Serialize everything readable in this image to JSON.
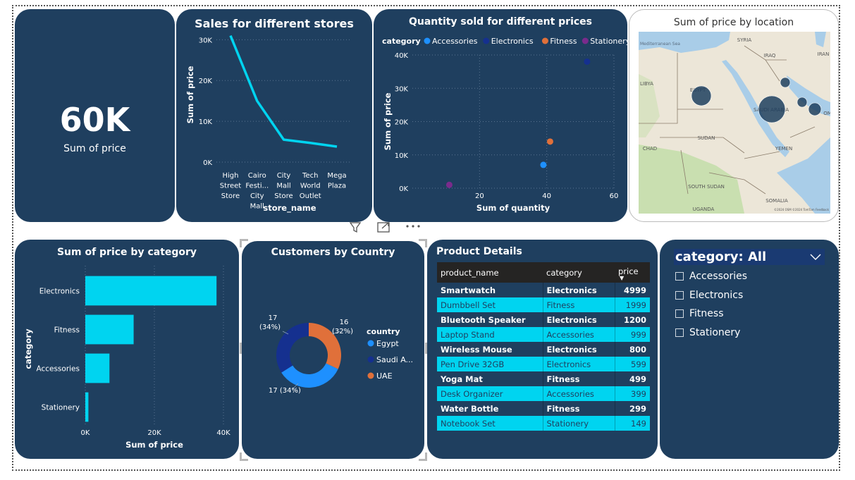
{
  "colors": {
    "card": "#1f3f5f",
    "accent": "#00d4f0",
    "accessories": "#1e90ff",
    "electronics": "#15308f",
    "fitness": "#e0703a",
    "stationery": "#7a2b8c"
  },
  "kpi": {
    "value": "60K",
    "label": "Sum of price"
  },
  "visual_header_icons": [
    "filter-icon",
    "focus-mode-icon",
    "more-options-icon"
  ],
  "chart_data": [
    {
      "type": "line",
      "title": "Sales for different stores",
      "xlabel": "store_name",
      "ylabel": "Sum of price",
      "categories": [
        "High Street Store",
        "Cairo Festival City Mall",
        "City Mall Store",
        "Tech World Outlet",
        "Mega Plaza"
      ],
      "category_tick_lines": [
        [
          "High",
          "Street",
          "Store"
        ],
        [
          "Cairo",
          "Festi...",
          "City",
          "Mall"
        ],
        [
          "City",
          "Mall",
          "Store"
        ],
        [
          "Tech",
          "World",
          "Outlet"
        ],
        [
          "Mega",
          "Plaza"
        ]
      ],
      "values": [
        31000,
        15000,
        5500,
        4700,
        3800
      ],
      "ylim": [
        0,
        33000
      ],
      "yticks": [
        "0K",
        "10K",
        "20K",
        "30K"
      ],
      "color": "#00d4f0",
      "grid": true
    },
    {
      "type": "scatter",
      "title": "Quantity sold for different prices",
      "xlabel": "Sum of quantity",
      "ylabel": "Sum of price",
      "legend_title": "category",
      "legend_position": "top",
      "xlim": [
        0,
        60
      ],
      "ylim": [
        0,
        40000
      ],
      "xticks": [
        "20",
        "40",
        "60"
      ],
      "yticks": [
        "0K",
        "10K",
        "20K",
        "30K",
        "40K"
      ],
      "series": [
        {
          "name": "Accessories",
          "points": [
            [
              39,
              7000
            ]
          ]
        },
        {
          "name": "Electronics",
          "points": [
            [
              52,
              38000
            ]
          ]
        },
        {
          "name": "Fitness",
          "points": [
            [
              41,
              14000
            ]
          ]
        },
        {
          "name": "Stationery",
          "points": [
            [
              11,
              1000
            ]
          ]
        }
      ]
    },
    {
      "type": "bar",
      "orientation": "horizontal",
      "title": "Sum of price by category",
      "xlabel": "Sum of price",
      "ylabel": "category",
      "categories": [
        "Electronics",
        "Fitness",
        "Accessories",
        "Stationery"
      ],
      "values": [
        38000,
        14000,
        7000,
        900
      ],
      "xlim": [
        0,
        40000
      ],
      "xticks": [
        "0K",
        "20K",
        "40K"
      ],
      "color": "#00d4f0",
      "grid": true
    },
    {
      "type": "pie",
      "style": "donut",
      "title": "Customers by Country",
      "legend_title": "country",
      "legend_position": "right",
      "categories": [
        "UAE",
        "Egypt",
        "Saudi Arabia"
      ],
      "legend_labels": [
        "Egypt",
        "Saudi A...",
        "UAE"
      ],
      "values": [
        16,
        17,
        17
      ],
      "value_labels": [
        "16",
        "17",
        "17"
      ],
      "percent_labels": [
        "(32%)",
        "(34%)",
        "(34%)"
      ]
    },
    {
      "type": "table",
      "title": "Product Details",
      "columns": [
        "product_name",
        "category",
        "price"
      ],
      "sort": {
        "column": "price",
        "direction": "descending"
      },
      "rows": [
        [
          "Smartwatch",
          "Electronics",
          "4999"
        ],
        [
          "Dumbbell Set",
          "Fitness",
          "1999"
        ],
        [
          "Bluetooth Speaker",
          "Electronics",
          "1200"
        ],
        [
          "Laptop Stand",
          "Accessories",
          "999"
        ],
        [
          "Wireless Mouse",
          "Electronics",
          "800"
        ],
        [
          "Pen Drive 32GB",
          "Electronics",
          "599"
        ],
        [
          "Yoga Mat",
          "Fitness",
          "499"
        ],
        [
          "Desk Organizer",
          "Accessories",
          "399"
        ],
        [
          "Water Bottle",
          "Fitness",
          "299"
        ],
        [
          "Notebook Set",
          "Stationery",
          "149"
        ]
      ]
    }
  ],
  "map": {
    "title": "Sum of price by location",
    "place_labels": [
      "Mediterranean Sea",
      "SYRIA",
      "IRAQ",
      "IRAN",
      "LIBYA",
      "EGYPT",
      "SAUDI ARABIA",
      "SUDAN",
      "YEMEN",
      "CHAD",
      "SOUTH SUDAN",
      "UGANDA",
      "SOMALIA",
      "OM"
    ],
    "attribution": "©2024 OSM ©2024 TomTom Feedback",
    "bubbles": [
      {
        "location": "Egypt",
        "size": "medium"
      },
      {
        "location": "Saudi Arabia",
        "size": "large"
      },
      {
        "location": "Kuwait",
        "size": "small"
      },
      {
        "location": "Qatar",
        "size": "small"
      },
      {
        "location": "UAE",
        "size": "small"
      }
    ]
  },
  "slicer": {
    "header": "category: All",
    "items": [
      "Accessories",
      "Electronics",
      "Fitness",
      "Stationery"
    ]
  }
}
